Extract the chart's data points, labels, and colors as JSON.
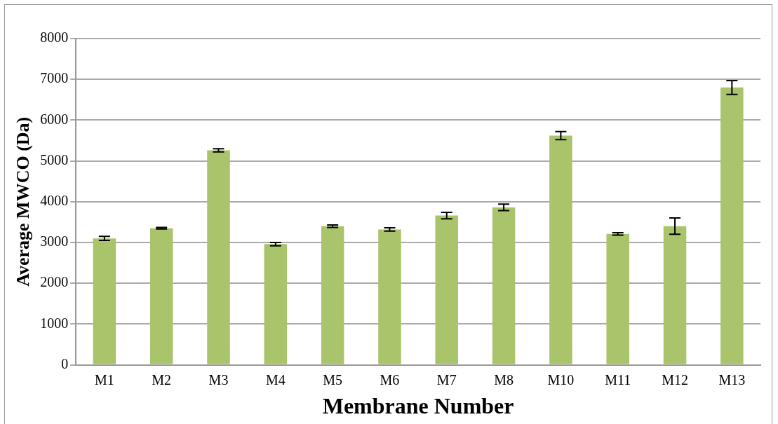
{
  "chart_data": {
    "type": "bar",
    "xlabel": "Membrane Number",
    "ylabel": "Average MWCO (Da)",
    "categories": [
      "M1",
      "M2",
      "M3",
      "M4",
      "M5",
      "M6",
      "M7",
      "M8",
      "M10",
      "M11",
      "M12",
      "M13"
    ],
    "values": [
      3100,
      3350,
      5260,
      2960,
      3400,
      3320,
      3660,
      3860,
      5620,
      3210,
      3400,
      6800
    ],
    "errors": [
      50,
      20,
      40,
      40,
      30,
      40,
      80,
      80,
      100,
      30,
      200,
      170
    ],
    "color": "#a9c46a",
    "ylim": [
      0,
      8000
    ],
    "yticks": [
      0,
      1000,
      2000,
      3000,
      4000,
      5000,
      6000,
      7000,
      8000
    ],
    "grid": "y",
    "legend": false
  }
}
